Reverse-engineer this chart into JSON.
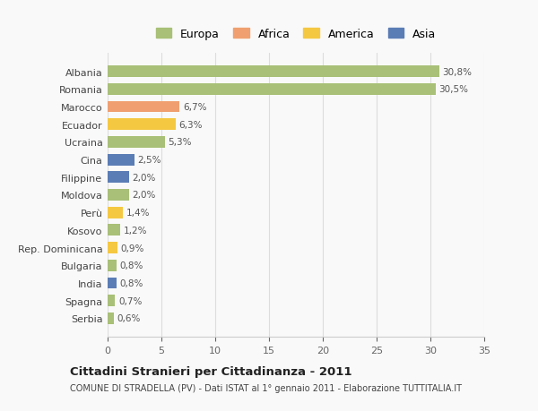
{
  "categories": [
    "Albania",
    "Romania",
    "Marocco",
    "Ecuador",
    "Ucraina",
    "Cina",
    "Filippine",
    "Moldova",
    "Perù",
    "Kosovo",
    "Rep. Dominicana",
    "Bulgaria",
    "India",
    "Spagna",
    "Serbia"
  ],
  "values": [
    30.8,
    30.5,
    6.7,
    6.3,
    5.3,
    2.5,
    2.0,
    2.0,
    1.4,
    1.2,
    0.9,
    0.8,
    0.8,
    0.7,
    0.6
  ],
  "labels": [
    "30,8%",
    "30,5%",
    "6,7%",
    "6,3%",
    "5,3%",
    "2,5%",
    "2,0%",
    "2,0%",
    "1,4%",
    "1,2%",
    "0,9%",
    "0,8%",
    "0,8%",
    "0,7%",
    "0,6%"
  ],
  "colors": [
    "#a8c077",
    "#a8c077",
    "#f0a070",
    "#f5c842",
    "#a8c077",
    "#5b7db5",
    "#5b7db5",
    "#a8c077",
    "#f5c842",
    "#a8c077",
    "#f5c842",
    "#a8c077",
    "#5b7db5",
    "#a8c077",
    "#a8c077"
  ],
  "legend": {
    "Europa": "#a8c077",
    "Africa": "#f0a070",
    "America": "#f5c842",
    "Asia": "#5b7db5"
  },
  "xlim": [
    0,
    35
  ],
  "xticks": [
    0,
    5,
    10,
    15,
    20,
    25,
    30,
    35
  ],
  "title": "Cittadini Stranieri per Cittadinanza - 2011",
  "subtitle": "COMUNE DI STRADELLA (PV) - Dati ISTAT al 1° gennaio 2011 - Elaborazione TUTTITALIA.IT",
  "background_color": "#f9f9f9",
  "bar_height": 0.65,
  "grid_color": "#dddddd"
}
